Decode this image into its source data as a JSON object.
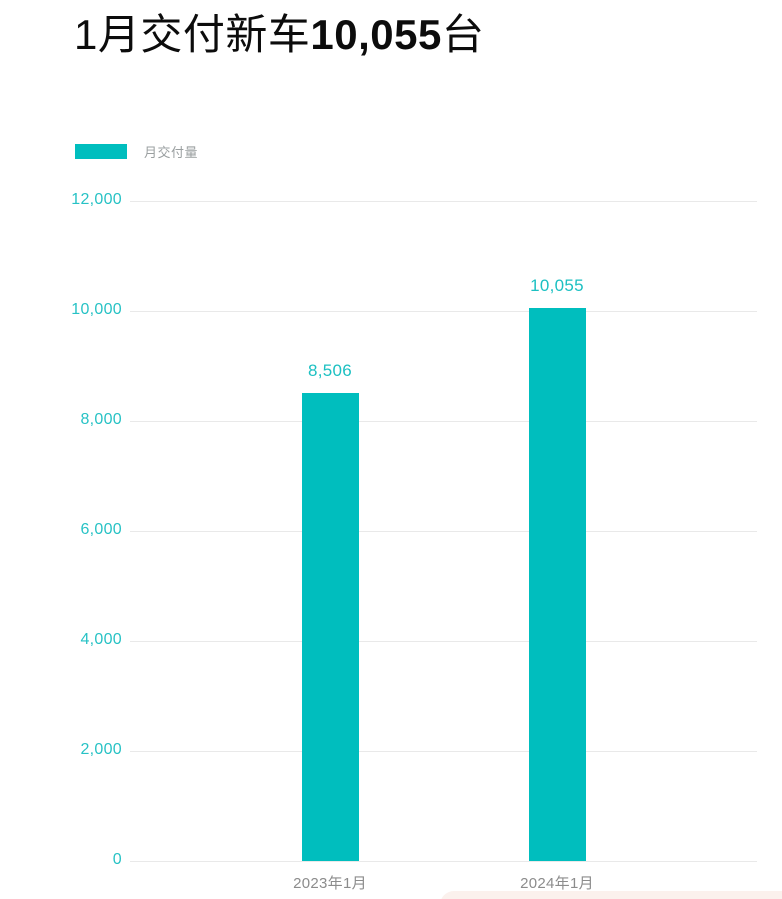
{
  "title": {
    "prefix": "1月交付新车",
    "value": "10,055",
    "suffix": "台"
  },
  "legend": {
    "label": "月交付量",
    "swatch_color": "#00bebe"
  },
  "chart_data": {
    "type": "bar",
    "title": "1月交付新车10,055台",
    "series_name": "月交付量",
    "categories": [
      "2023年1月",
      "2024年1月"
    ],
    "values": [
      8506,
      10055
    ],
    "value_labels": [
      "8,506",
      "10,055"
    ],
    "xlabel": "",
    "ylabel": "",
    "ylim": [
      0,
      12000
    ],
    "yticks": [
      0,
      2000,
      4000,
      6000,
      8000,
      10000,
      12000
    ],
    "ytick_labels": [
      "0",
      "2,000",
      "4,000",
      "6,000",
      "8,000",
      "10,000",
      "12,000"
    ],
    "grid": true,
    "legend_position": "top-left",
    "bar_color": "#00bebe",
    "tick_label_color": "#27c2c5",
    "value_label_color": "#1cc0c2",
    "category_label_color": "#8c8c8c",
    "gridline_color": "#e9e9e9"
  }
}
